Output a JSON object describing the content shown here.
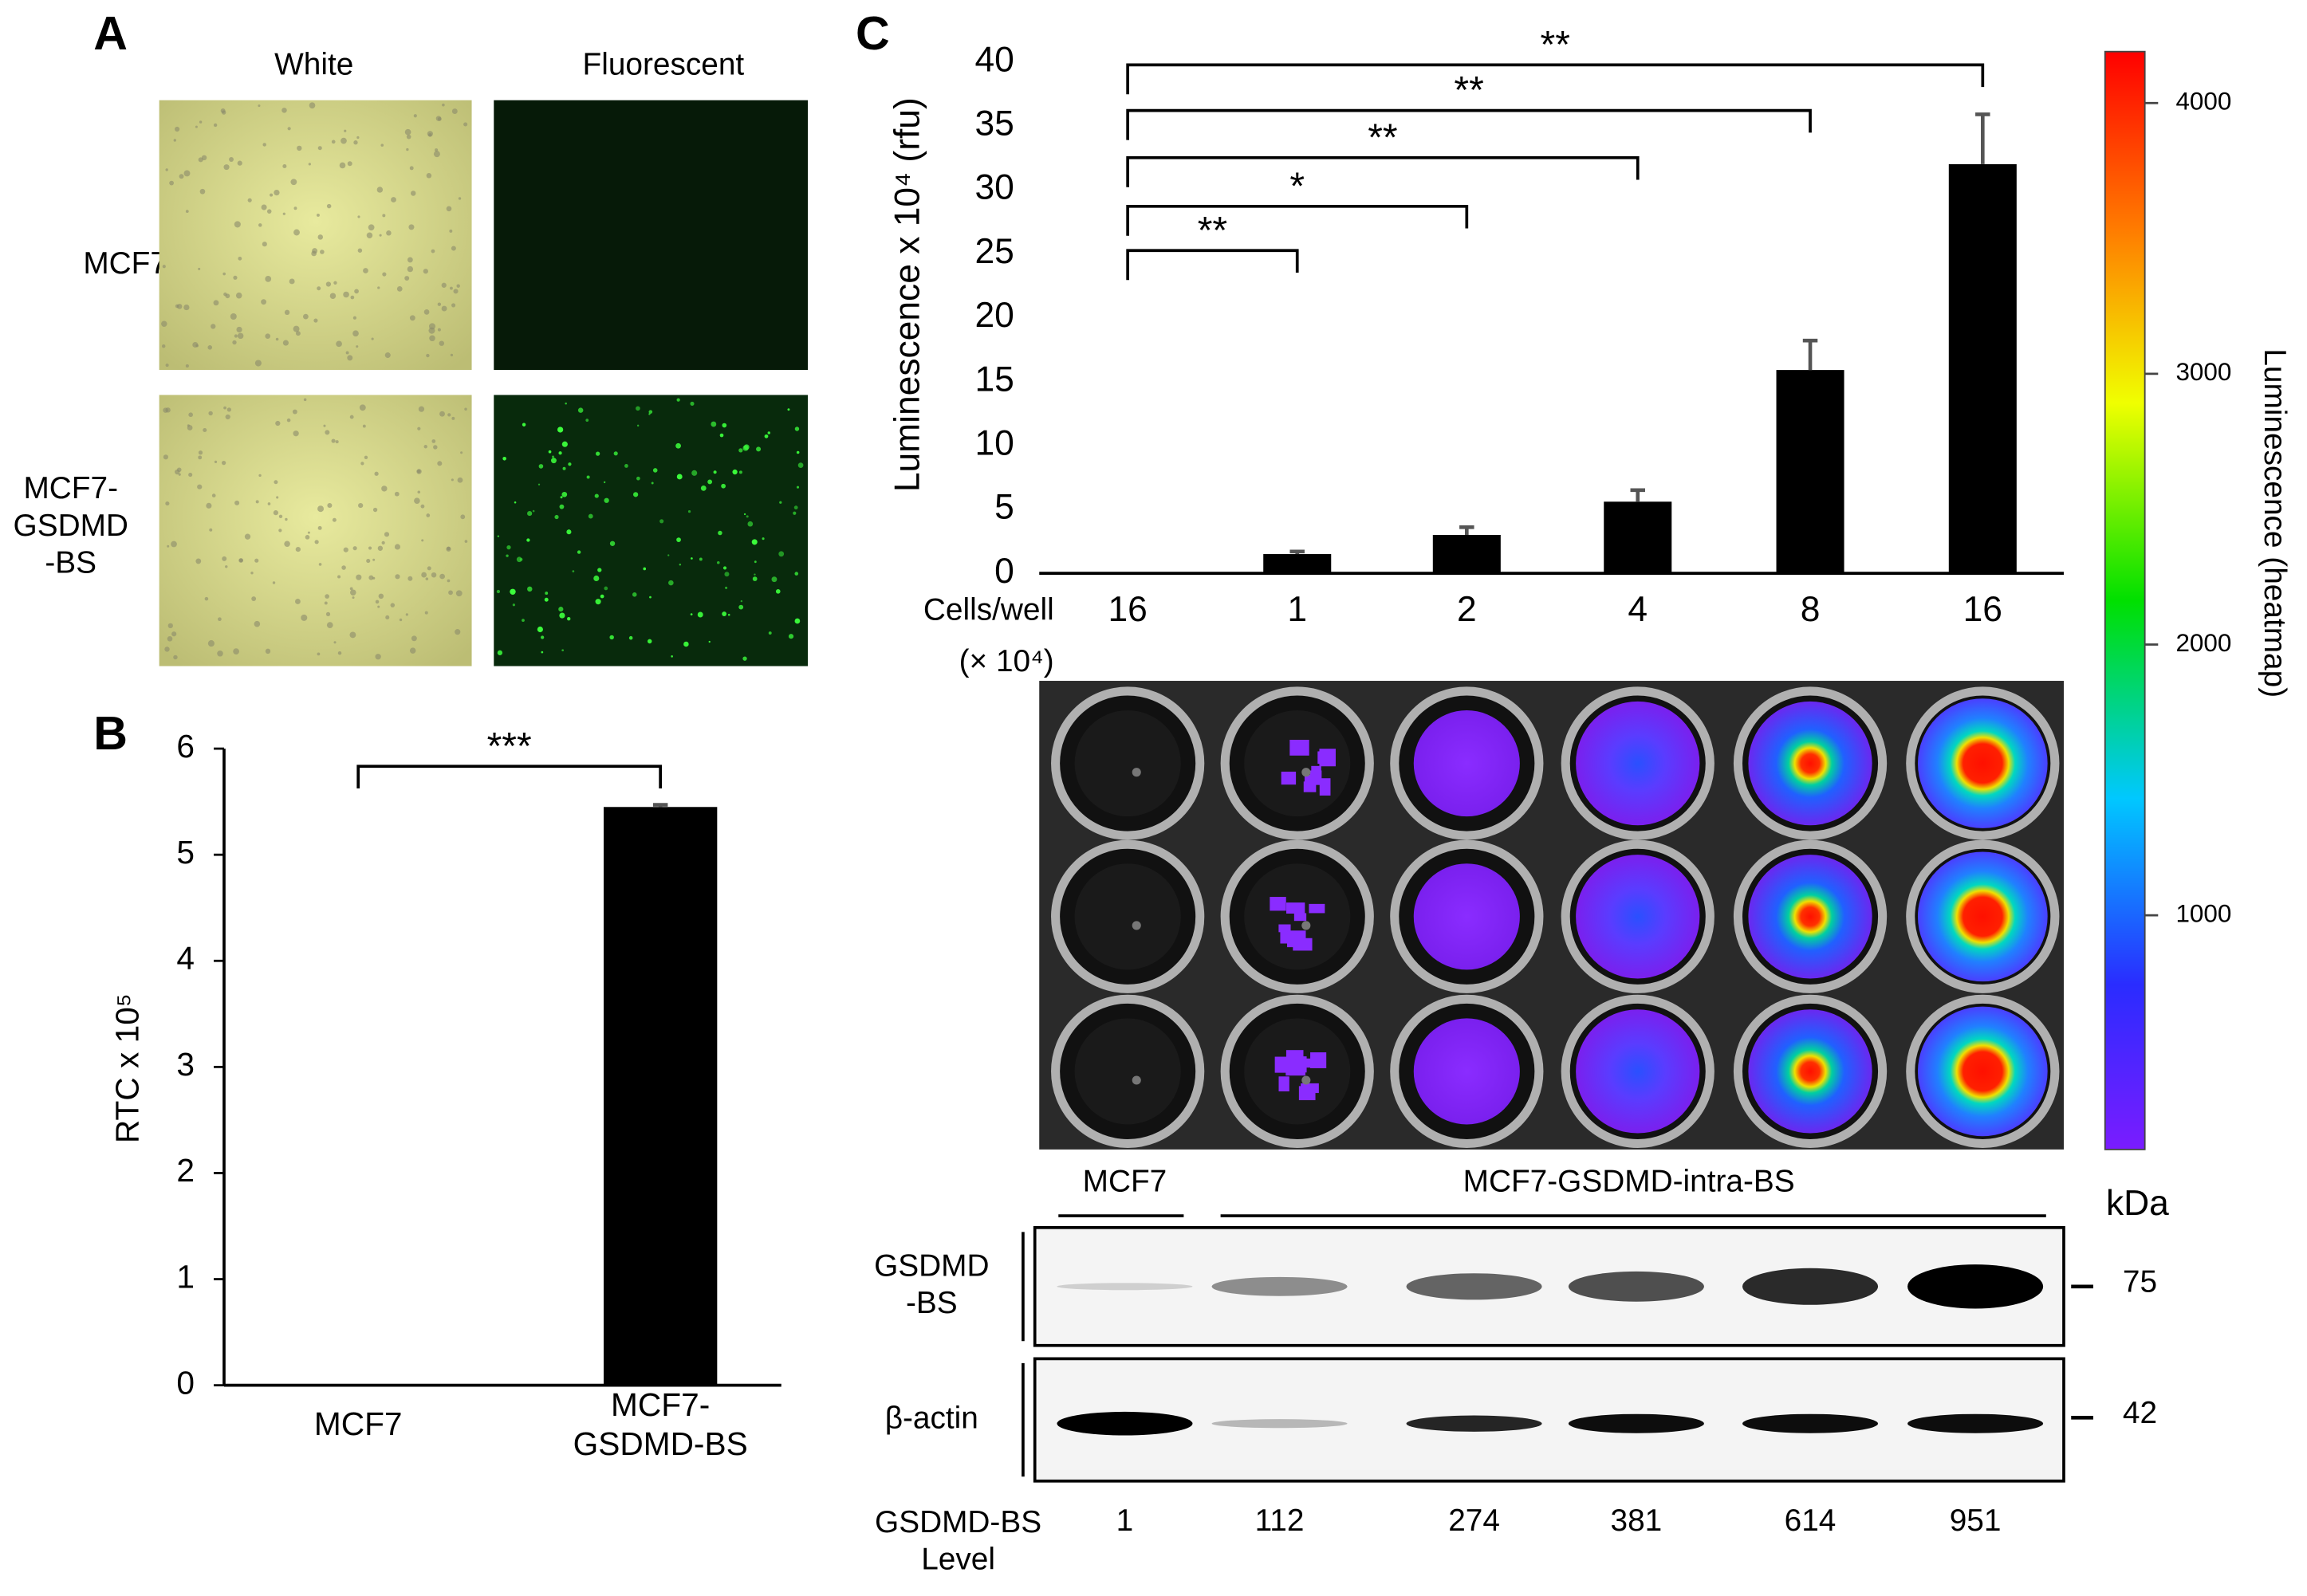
{
  "panel_labels": [
    "A",
    "B",
    "C"
  ],
  "microscopy": {
    "columns": [
      "White",
      "Fluorescent"
    ],
    "rows": [
      "MCF7",
      "MCF7-\nGSDMD\n-BS"
    ]
  },
  "chart_data": [
    {
      "type": "bar",
      "y_label": "RTC x 10⁵",
      "categories": [
        "MCF7",
        "MCF7-\nGSDMD-BS"
      ],
      "values": [
        0,
        5.45
      ],
      "errors": [
        0,
        0.02
      ],
      "color": "#000000",
      "ylim": [
        0,
        6
      ],
      "yticks": [
        0,
        1,
        2,
        3,
        4,
        5,
        6
      ],
      "significance_labels": [
        "***"
      ]
    },
    {
      "type": "bar",
      "y_label": "Luminescence x 10⁴ (rfu)",
      "x_label": "Cells/well",
      "x_unit": "(× 10⁴)",
      "categories": [
        "16",
        "1",
        "2",
        "4",
        "8",
        "16"
      ],
      "values": [
        0,
        1.5,
        3.0,
        5.6,
        15.9,
        32.0
      ],
      "errors": [
        0,
        0.2,
        0.6,
        0.9,
        2.3,
        3.9
      ],
      "color": "#000000",
      "ylim": [
        0,
        40
      ],
      "yticks": [
        0,
        5,
        10,
        15,
        20,
        25,
        30,
        35,
        40
      ],
      "significance_labels": [
        "**",
        "*",
        "**",
        "**",
        "**"
      ]
    },
    {
      "type": "colorbar",
      "label": "Luminescence (heatmap)",
      "ylim": [
        135,
        4190
      ],
      "yticks": [
        1000,
        2000,
        3000,
        4000
      ]
    }
  ],
  "western_blot": {
    "groups": [
      "MCF7",
      "MCF7-GSDMD-intra-BS"
    ],
    "unit": "kDa",
    "rows": [
      {
        "name": "GSDMD\n-BS",
        "marker": "75"
      },
      {
        "name": "β-actin",
        "marker": "42"
      }
    ],
    "level_label": "GSDMD-BS\nLevel",
    "levels": [
      1,
      112,
      274,
      381,
      614,
      951
    ]
  }
}
